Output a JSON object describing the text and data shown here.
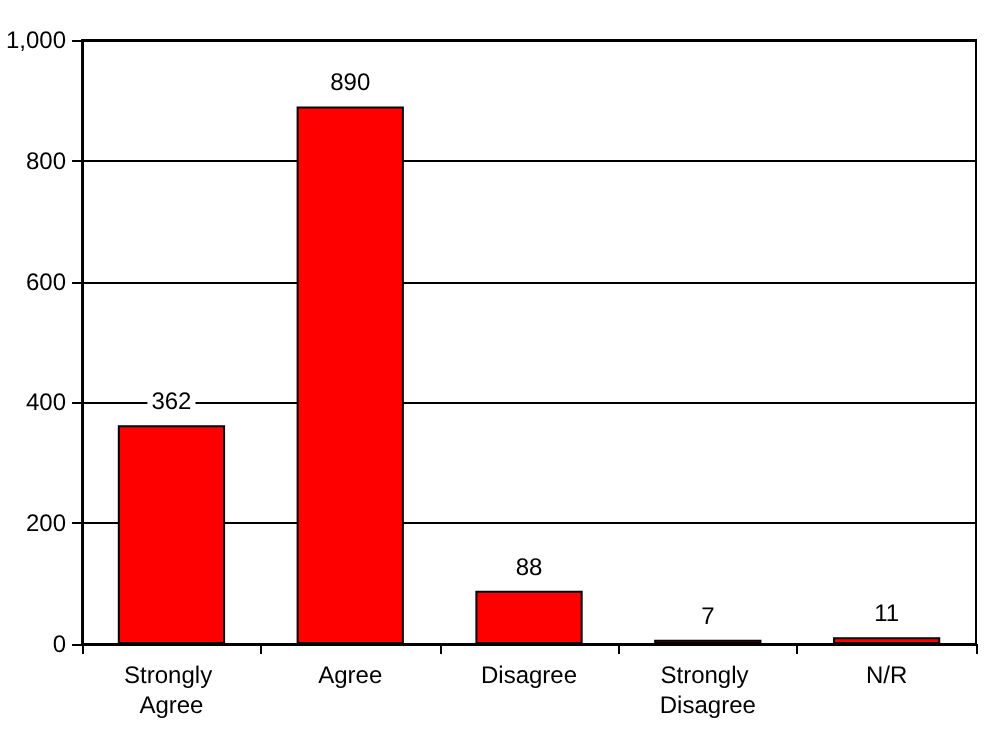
{
  "chart_data": {
    "type": "bar",
    "categories": [
      "Strongly Agree",
      "Agree",
      "Disagree",
      "Strongly Disagree",
      "N/R"
    ],
    "values": [
      362,
      890,
      88,
      7,
      11
    ],
    "color": "#ff0000",
    "ylim": [
      0,
      1000
    ],
    "yticks": [
      0,
      200,
      400,
      600,
      800,
      {
        "value": 1000,
        "label": "1,000"
      }
    ],
    "grid": "y",
    "data_labels": true
  }
}
